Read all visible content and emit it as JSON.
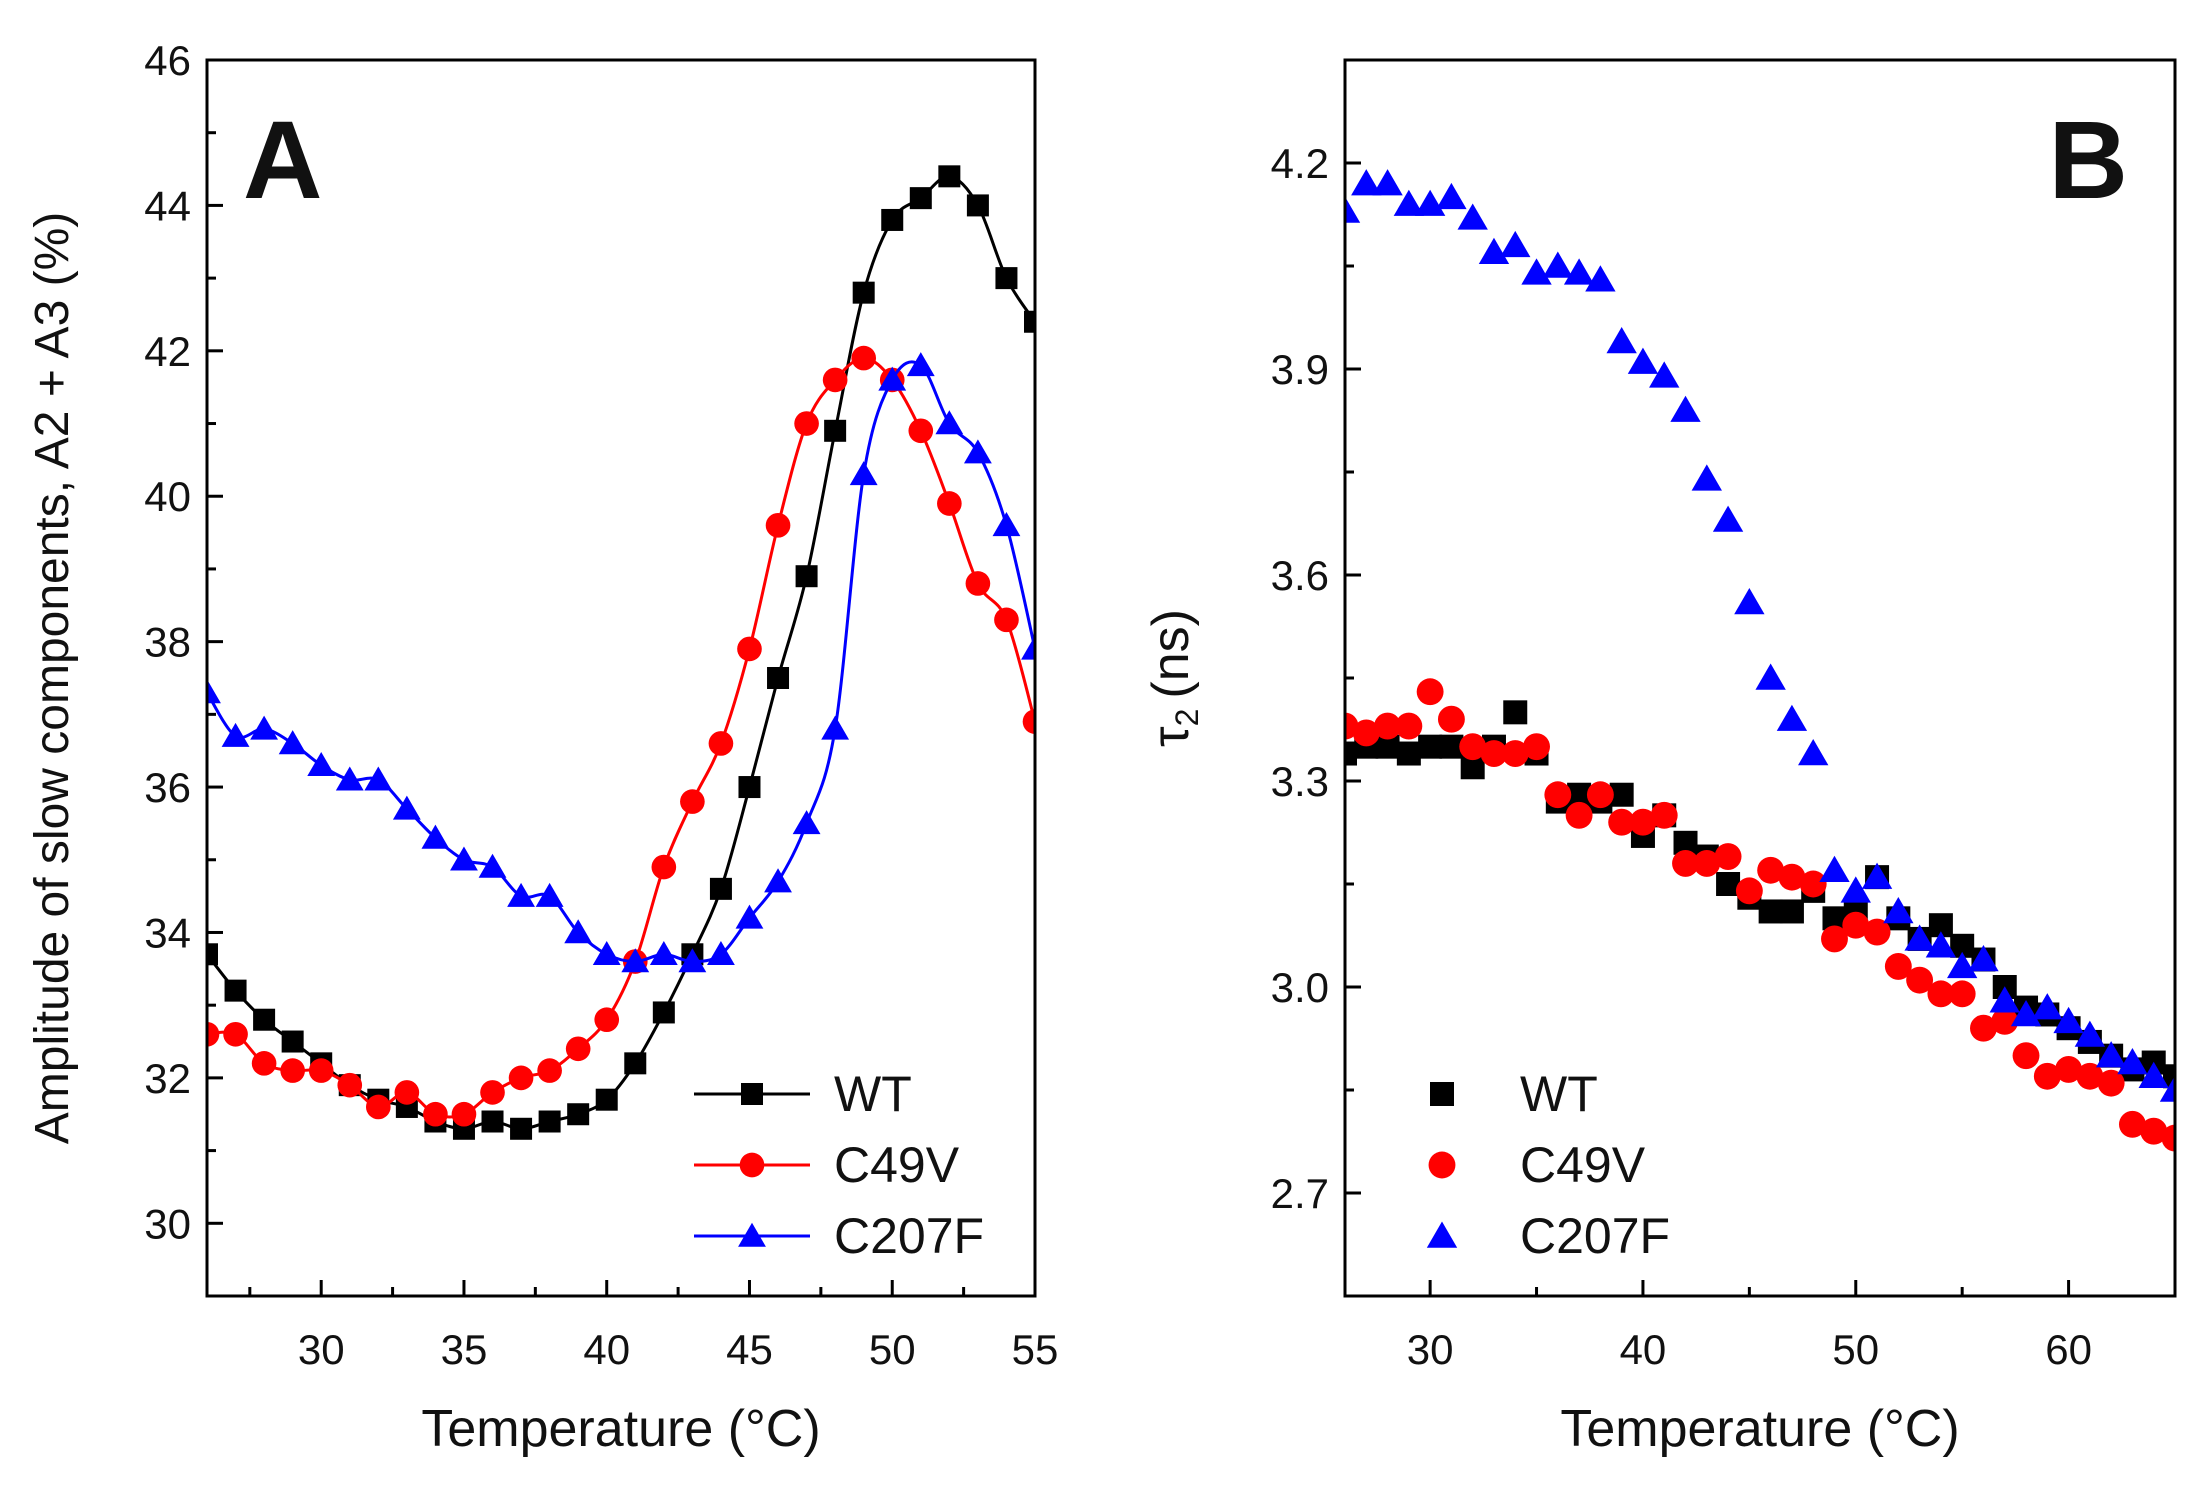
{
  "chart_data": [
    {
      "type": "line",
      "panel_label": "A",
      "xlabel": "Temperature (°C)",
      "ylabel": "Amplitude of slow components, A2 + A3 (%)",
      "xlim": [
        26,
        55
      ],
      "ylim": [
        29,
        46
      ],
      "xticks": [
        30,
        35,
        40,
        45,
        50,
        55
      ],
      "yticks": [
        30,
        32,
        34,
        36,
        38,
        40,
        42,
        44,
        46
      ],
      "legend_position": "bottom-right",
      "series": [
        {
          "name": "WT",
          "color": "#000000",
          "marker": "square",
          "line": true,
          "x": [
            26,
            27,
            28,
            29,
            30,
            31,
            32,
            33,
            34,
            35,
            36,
            37,
            38,
            39,
            40,
            41,
            42,
            43,
            44,
            45,
            46,
            47,
            48,
            49,
            50,
            51,
            52,
            53,
            54,
            55
          ],
          "y": [
            33.7,
            33.2,
            32.8,
            32.5,
            32.2,
            31.9,
            31.7,
            31.6,
            31.4,
            31.3,
            31.4,
            31.3,
            31.4,
            31.5,
            31.7,
            32.2,
            32.9,
            33.7,
            34.6,
            36.0,
            37.5,
            38.9,
            40.9,
            42.8,
            43.8,
            44.1,
            44.4,
            44.0,
            43.0,
            42.4
          ]
        },
        {
          "name": "C49V",
          "color": "#ff0000",
          "marker": "circle",
          "line": true,
          "x": [
            26,
            27,
            28,
            29,
            30,
            31,
            32,
            33,
            34,
            35,
            36,
            37,
            38,
            39,
            40,
            41,
            42,
            43,
            44,
            45,
            46,
            47,
            48,
            49,
            50,
            51,
            52,
            53,
            54,
            55
          ],
          "y": [
            32.6,
            32.6,
            32.2,
            32.1,
            32.1,
            31.9,
            31.6,
            31.8,
            31.5,
            31.5,
            31.8,
            32.0,
            32.1,
            32.4,
            32.8,
            33.6,
            34.9,
            35.8,
            36.6,
            37.9,
            39.6,
            41.0,
            41.6,
            41.9,
            41.6,
            40.9,
            39.9,
            38.8,
            38.3,
            36.9
          ]
        },
        {
          "name": "C207F",
          "color": "#0000ff",
          "marker": "triangle",
          "line": true,
          "x": [
            26,
            27,
            28,
            29,
            30,
            31,
            32,
            33,
            34,
            35,
            36,
            37,
            38,
            39,
            40,
            41,
            42,
            43,
            44,
            45,
            46,
            47,
            48,
            49,
            50,
            51,
            52,
            53,
            54,
            55
          ],
          "y": [
            37.3,
            36.7,
            36.8,
            36.6,
            36.3,
            36.1,
            36.1,
            35.7,
            35.3,
            35.0,
            34.9,
            34.5,
            34.5,
            34.0,
            33.7,
            33.6,
            33.7,
            33.6,
            33.7,
            34.2,
            34.7,
            35.5,
            36.8,
            40.3,
            41.6,
            41.8,
            41.0,
            40.6,
            39.6,
            37.9
          ]
        }
      ]
    },
    {
      "type": "scatter",
      "panel_label": "B",
      "xlabel": "Temperature (°C)",
      "ylabel_symbol": "τ",
      "ylabel_sub": "2",
      "ylabel_unit": "(ns)",
      "xlim": [
        26,
        65
      ],
      "ylim": [
        2.55,
        4.35
      ],
      "xticks": [
        30,
        40,
        50,
        60
      ],
      "yticks": [
        2.7,
        3.0,
        3.3,
        3.6,
        3.9,
        4.2
      ],
      "ytick_labels": [
        "2.7",
        "3.0",
        "3.3",
        "3.6",
        "3.9",
        "4.2"
      ],
      "legend_position": "bottom-left",
      "series": [
        {
          "name": "WT",
          "color": "#000000",
          "marker": "square",
          "x": [
            26,
            27,
            28,
            29,
            30,
            31,
            32,
            33,
            34,
            35,
            36,
            37,
            38,
            39,
            40,
            41,
            42,
            43,
            44,
            45,
            46,
            47,
            48,
            49,
            50,
            51,
            52,
            53,
            54,
            55,
            56,
            57,
            58,
            59,
            60,
            61,
            62,
            63,
            64,
            65
          ],
          "y": [
            3.34,
            3.35,
            3.35,
            3.34,
            3.35,
            3.35,
            3.32,
            3.35,
            3.4,
            3.34,
            3.27,
            3.28,
            3.27,
            3.28,
            3.22,
            3.25,
            3.21,
            3.19,
            3.15,
            3.13,
            3.11,
            3.11,
            3.14,
            3.1,
            3.11,
            3.16,
            3.1,
            3.07,
            3.09,
            3.06,
            3.04,
            3.0,
            2.97,
            2.96,
            2.94,
            2.92,
            2.9,
            2.88,
            2.89,
            2.87
          ]
        },
        {
          "name": "C49V",
          "color": "#ff0000",
          "marker": "circle",
          "x": [
            26,
            27,
            28,
            29,
            30,
            31,
            32,
            33,
            34,
            35,
            36,
            37,
            38,
            39,
            40,
            41,
            42,
            43,
            44,
            45,
            46,
            47,
            48,
            49,
            50,
            51,
            52,
            53,
            54,
            55,
            56,
            57,
            58,
            59,
            60,
            61,
            62,
            63,
            64,
            65
          ],
          "y": [
            3.38,
            3.37,
            3.38,
            3.38,
            3.43,
            3.39,
            3.35,
            3.34,
            3.34,
            3.35,
            3.28,
            3.25,
            3.28,
            3.24,
            3.24,
            3.25,
            3.18,
            3.18,
            3.19,
            3.14,
            3.17,
            3.16,
            3.15,
            3.07,
            3.09,
            3.08,
            3.03,
            3.01,
            2.99,
            2.99,
            2.94,
            2.95,
            2.9,
            2.87,
            2.88,
            2.87,
            2.86,
            2.8,
            2.79,
            2.78
          ]
        },
        {
          "name": "C207F",
          "color": "#0000ff",
          "marker": "triangle",
          "x": [
            26,
            27,
            28,
            29,
            30,
            31,
            32,
            33,
            34,
            35,
            36,
            37,
            38,
            39,
            40,
            41,
            42,
            43,
            44,
            45,
            46,
            47,
            48,
            49,
            50,
            51,
            52,
            53,
            54,
            55,
            56,
            57,
            58,
            59,
            60,
            61,
            62,
            63,
            64,
            65
          ],
          "y": [
            4.13,
            4.17,
            4.17,
            4.14,
            4.14,
            4.15,
            4.12,
            4.07,
            4.08,
            4.04,
            4.05,
            4.04,
            4.03,
            3.94,
            3.91,
            3.89,
            3.84,
            3.74,
            3.68,
            3.56,
            3.45,
            3.39,
            3.34,
            3.17,
            3.14,
            3.16,
            3.11,
            3.07,
            3.06,
            3.03,
            3.04,
            2.98,
            2.96,
            2.97,
            2.95,
            2.93,
            2.9,
            2.89,
            2.87,
            2.85
          ]
        }
      ]
    }
  ]
}
